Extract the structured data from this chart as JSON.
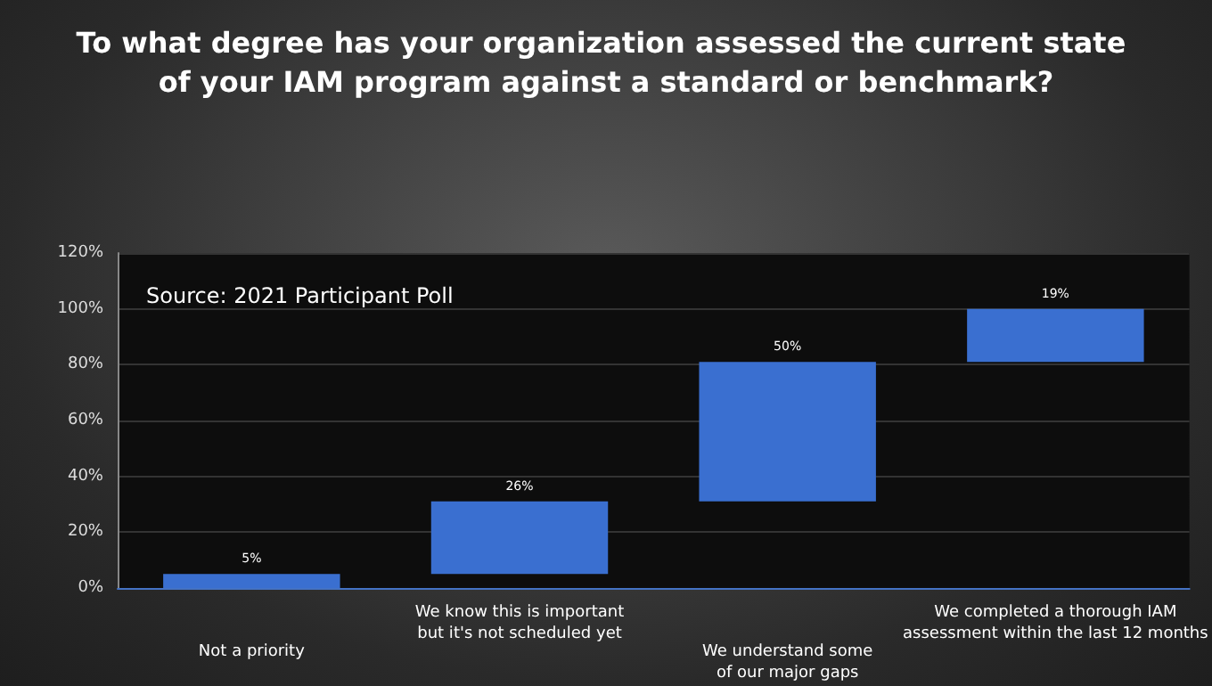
{
  "chart_data": {
    "type": "bar",
    "title": "To what degree has your organization assessed the current state of your IAM program against a standard or benchmark?",
    "annotations": [
      "Source: 2021 Participant Poll"
    ],
    "categories": [
      "Not a priority",
      "We know this is important but it's not scheduled yet",
      "We understand some of our major gaps",
      "We completed a thorough IAM assessment within the last 12 months"
    ],
    "values": [
      5,
      26,
      50,
      19
    ],
    "base": [
      0,
      5,
      31,
      81
    ],
    "value_labels": [
      "5%",
      "26%",
      "50%",
      "19%"
    ],
    "color": "#3a6fd0",
    "ylim": [
      0,
      120
    ],
    "yticks": [
      {
        "value": 0,
        "label": "0%"
      },
      {
        "value": 20,
        "label": "20%"
      },
      {
        "value": 40,
        "label": "40%"
      },
      {
        "value": 60,
        "label": "60%"
      },
      {
        "value": 80,
        "label": "80%"
      },
      {
        "value": 100,
        "label": "100%"
      },
      {
        "value": 120,
        "label": "120%"
      }
    ],
    "grid": "y"
  }
}
